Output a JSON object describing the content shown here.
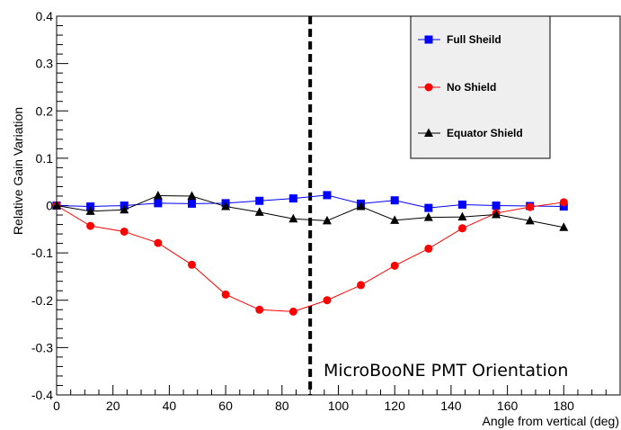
{
  "chart_data": {
    "type": "line",
    "title": "",
    "xlabel": "Angle from vertical (deg)",
    "ylabel": "Relative Gain Variation",
    "xlim": [
      0,
      200
    ],
    "ylim": [
      -0.4,
      0.4
    ],
    "xticks": [
      0,
      20,
      40,
      60,
      80,
      100,
      120,
      140,
      160,
      180
    ],
    "yticks": [
      -0.4,
      -0.3,
      -0.2,
      -0.1,
      0,
      0.1,
      0.2,
      0.3,
      0.4
    ],
    "ytick_labels": [
      "-0.4",
      "-0.3",
      "-0.2",
      "-0.1",
      "0",
      "0.1",
      "0.2",
      "0.3",
      "0.4"
    ],
    "grid": false,
    "legend_position": "top-right",
    "series": [
      {
        "name": "Full Sheild",
        "color": "#0000ff",
        "marker": "square",
        "x": [
          0,
          12,
          24,
          36,
          48,
          60,
          72,
          84,
          96,
          108,
          120,
          132,
          144,
          156,
          168,
          180
        ],
        "y": [
          0.0,
          -0.002,
          0.0,
          0.005,
          0.004,
          0.005,
          0.01,
          0.015,
          0.022,
          0.004,
          0.011,
          -0.005,
          0.002,
          0.0,
          -0.001,
          -0.002
        ]
      },
      {
        "name": "No Shield",
        "color": "#ff0000",
        "marker": "circle",
        "x": [
          0,
          12,
          24,
          36,
          48,
          60,
          72,
          84,
          96,
          108,
          120,
          132,
          144,
          156,
          168,
          180
        ],
        "y": [
          0.0,
          -0.043,
          -0.055,
          -0.079,
          -0.125,
          -0.188,
          -0.22,
          -0.224,
          -0.2,
          -0.168,
          -0.127,
          -0.091,
          -0.048,
          -0.016,
          -0.003,
          0.007
        ]
      },
      {
        "name": "Equator Shield",
        "color": "#000000",
        "marker": "triangle",
        "x": [
          0,
          12,
          24,
          36,
          48,
          60,
          72,
          84,
          96,
          108,
          120,
          132,
          144,
          156,
          168,
          180
        ],
        "y": [
          0.0,
          -0.012,
          -0.009,
          0.021,
          0.02,
          -0.002,
          -0.014,
          -0.028,
          -0.032,
          -0.002,
          -0.031,
          -0.025,
          -0.024,
          -0.019,
          -0.032,
          -0.046
        ]
      }
    ],
    "vline": {
      "x": 90,
      "style": "dashed"
    },
    "annotation": "MicroBooNE PMT Orientation"
  }
}
